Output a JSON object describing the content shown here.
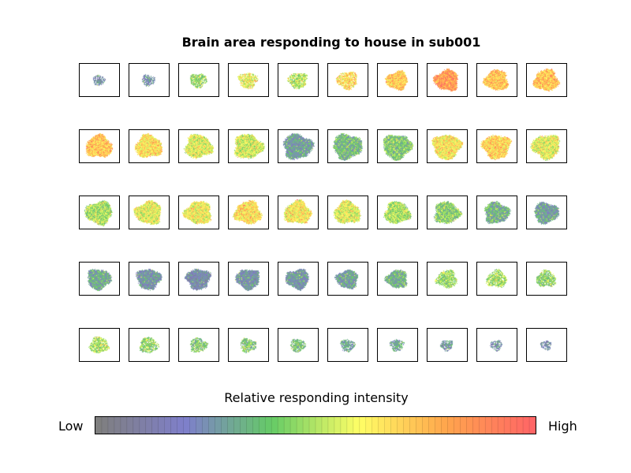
{
  "chart_data": {
    "type": "heatmap",
    "title": "Brain area responding to house in sub001",
    "rows": 5,
    "cols": 10,
    "slice_intensity": [
      [
        0.22,
        0.24,
        0.45,
        0.58,
        0.5,
        0.66,
        0.7,
        0.82,
        0.72,
        0.72
      ],
      [
        0.72,
        0.66,
        0.56,
        0.55,
        0.27,
        0.36,
        0.4,
        0.63,
        0.68,
        0.58
      ],
      [
        0.48,
        0.58,
        0.6,
        0.65,
        0.62,
        0.57,
        0.48,
        0.42,
        0.33,
        0.28
      ],
      [
        0.3,
        0.24,
        0.2,
        0.24,
        0.25,
        0.28,
        0.33,
        0.46,
        0.48,
        0.44
      ],
      [
        0.48,
        0.44,
        0.4,
        0.4,
        0.38,
        0.3,
        0.3,
        0.26,
        0.22,
        0.2
      ]
    ],
    "slice_size": [
      [
        0.4,
        0.44,
        0.55,
        0.62,
        0.62,
        0.68,
        0.72,
        0.8,
        0.78,
        0.82
      ],
      [
        0.86,
        0.88,
        0.9,
        0.94,
        0.96,
        0.96,
        0.94,
        0.94,
        0.92,
        0.92
      ],
      [
        0.88,
        0.88,
        0.88,
        0.88,
        0.88,
        0.86,
        0.84,
        0.84,
        0.82,
        0.8
      ],
      [
        0.78,
        0.8,
        0.8,
        0.78,
        0.76,
        0.72,
        0.7,
        0.68,
        0.66,
        0.64
      ],
      [
        0.62,
        0.6,
        0.56,
        0.54,
        0.5,
        0.48,
        0.46,
        0.42,
        0.4,
        0.36
      ]
    ],
    "colorbar": {
      "label": "Relative responding intensity",
      "low_label": "Low",
      "high_label": "High",
      "colors": [
        "#7f7f7f",
        "#7f7fcc",
        "#66cc66",
        "#ffff66",
        "#ffa64d",
        "#ff6666"
      ]
    }
  }
}
